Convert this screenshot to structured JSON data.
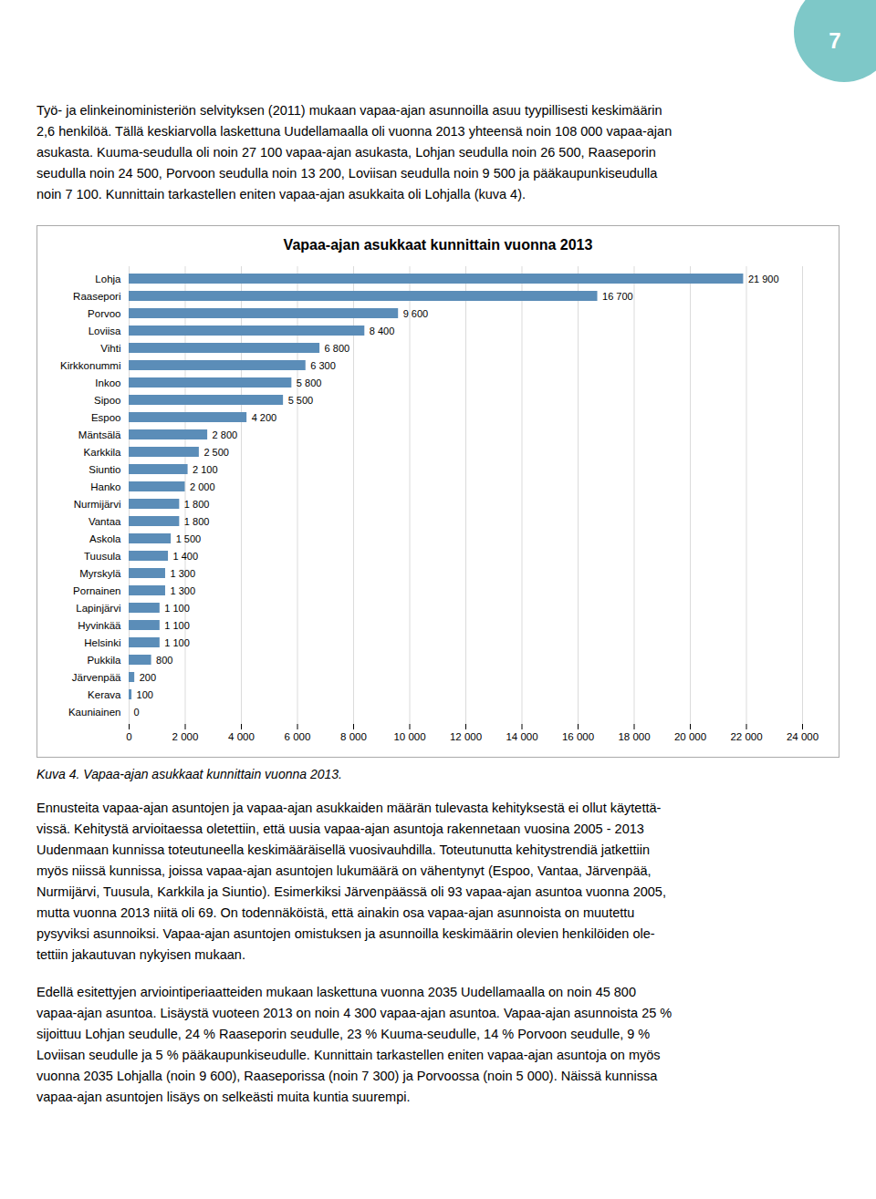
{
  "page_number": {
    "text": "7",
    "color": "#7ec8c8"
  },
  "paragraphs_before": [
    [
      "Työ- ja elinkeinoministeriön selvityksen (2011) mukaan vapaa-ajan asunnoilla asuu tyypillisesti keskimäärin",
      "2,6 henkilöä. Tällä keskiarvolla laskettuna Uudellamaalla oli vuonna 2013 yhteensä noin 108 000 vapaa-ajan",
      "asukasta. Kuuma-seudulla oli noin 27 100 vapaa-ajan asukasta, Lohjan seudulla noin 26 500, Raaseporin",
      "seudulla noin 24 500, Porvoon seudulla noin 13 200, Loviisan seudulla noin 9 500 ja pääkaupunkiseudulla",
      "noin 7 100. Kunnittain tarkastellen eniten vapaa-ajan asukkaita oli Lohjalla (kuva 4)."
    ]
  ],
  "paragraphs_after": [
    [
      "Ennusteita vapaa-ajan asuntojen ja vapaa-ajan asukkaiden määrän tulevasta kehityksestä ei ollut käytettä-",
      "vissä. Kehitystä arvioitaessa oletettiin, että uusia vapaa-ajan asuntoja rakennetaan vuosina 2005 - 2013",
      "Uudenmaan kunnissa toteutuneella keskimääräisellä vuosivauhdilla. Toteutunutta kehitystrendiä jatkettiin",
      "myös niissä kunnissa, joissa vapaa-ajan asuntojen lukumäärä on vähentynyt (Espoo, Vantaa, Järvenpää,",
      "Nurmijärvi, Tuusula, Karkkila ja Siuntio). Esimerkiksi Järvenpäässä oli 93 vapaa-ajan asuntoa vuonna 2005,",
      "mutta vuonna 2013 niitä oli 69. On todennäköistä, että ainakin osa vapaa-ajan asunnoista on muutettu",
      "pysyviksi asunnoiksi. Vapaa-ajan asuntojen omistuksen ja asunnoilla keskimäärin olevien henkilöiden ole-",
      "tettiin jakautuvan nykyisen mukaan."
    ],
    [
      "Edellä esitettyjen arviointiperiaatteiden mukaan laskettuna vuonna 2035 Uudellamaalla on noin 45 800",
      "vapaa-ajan asuntoa. Lisäystä vuoteen 2013 on noin 4 300 vapaa-ajan asuntoa. Vapaa-ajan asunnoista 25 %",
      "sijoittuu Lohjan seudulle, 24 % Raaseporin seudulle, 23 % Kuuma-seudulle, 14 % Porvoon seudulle, 9 %",
      "Loviisan seudulle ja 5 % pääkaupunkiseudulle. Kunnittain tarkastellen eniten vapaa-ajan asuntoja on myös",
      "vuonna 2035 Lohjalla (noin 9 600), Raaseporissa (noin 7 300) ja Porvoossa (noin 5 000). Näissä kunnissa",
      "vapaa-ajan asuntojen lisäys on selkeästi muita kuntia suurempi."
    ]
  ],
  "chart_data": {
    "type": "bar",
    "orientation": "horizontal",
    "title": "Vapaa-ajan asukkaat kunnittain vuonna 2013",
    "caption": "Kuva 4. Vapaa-ajan asukkaat kunnittain vuonna 2013.",
    "categories": [
      "Kauniainen",
      "Kerava",
      "Järvenpää",
      "Pukkila",
      "Helsinki",
      "Hyvinkää",
      "Lapinjärvi",
      "Pornainen",
      "Myrskylä",
      "Tuusula",
      "Askola",
      "Vantaa",
      "Nurmijärvi",
      "Hanko",
      "Siuntio",
      "Karkkila",
      "Mäntsälä",
      "Espoo",
      "Sipoo",
      "Inkoo",
      "Kirkkonummi",
      "Vihti",
      "Loviisa",
      "Porvoo",
      "Raasepori",
      "Lohja"
    ],
    "values": [
      0,
      100,
      200,
      800,
      1100,
      1100,
      1100,
      1300,
      1300,
      1400,
      1500,
      1800,
      1800,
      2000,
      2100,
      2500,
      2800,
      4200,
      5500,
      5800,
      6300,
      6800,
      8400,
      9600,
      16700,
      21900
    ],
    "value_labels": [
      "0",
      "100",
      "200",
      "800",
      "1 100",
      "1 100",
      "1 100",
      "1 300",
      "1 300",
      "1 400",
      "1 500",
      "1 800",
      "1 800",
      "2 000",
      "2 100",
      "2 500",
      "2 800",
      "4 200",
      "5 500",
      "5 800",
      "6 300",
      "6 800",
      "8 400",
      "9 600",
      "16 700",
      "21 900"
    ],
    "data_labels": true,
    "color": "#5b8db8",
    "xlim": [
      0,
      24000
    ],
    "xticks": [
      0,
      {
        "value": 2000,
        "label": "2 000"
      },
      {
        "value": 4000,
        "label": "4 000"
      },
      {
        "value": 6000,
        "label": "6 000"
      },
      {
        "value": 8000,
        "label": "8 000"
      },
      {
        "value": 10000,
        "label": "10 000"
      },
      {
        "value": 12000,
        "label": "12 000"
      },
      {
        "value": 14000,
        "label": "14 000"
      },
      {
        "value": 16000,
        "label": "16 000"
      },
      {
        "value": 18000,
        "label": "18 000"
      },
      {
        "value": 20000,
        "label": "20 000"
      },
      {
        "value": 22000,
        "label": "22 000"
      },
      {
        "value": 24000,
        "label": "24 000"
      }
    ],
    "grid": true
  }
}
